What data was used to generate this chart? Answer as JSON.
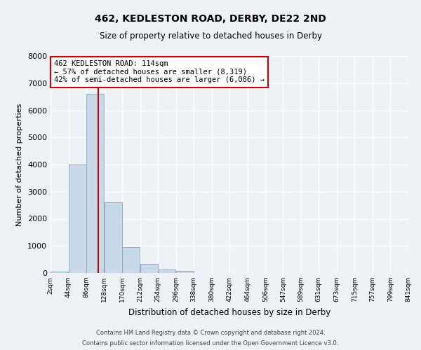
{
  "title": "462, KEDLESTON ROAD, DERBY, DE22 2ND",
  "subtitle": "Size of property relative to detached houses in Derby",
  "xlabel": "Distribution of detached houses by size in Derby",
  "ylabel": "Number of detached properties",
  "bar_color": "#c9d9ea",
  "bar_edge_color": "#8aaec8",
  "background_color": "#eef2f7",
  "grid_color": "#ffffff",
  "annotation_line_color": "#cc0000",
  "annotation_box_color": "#cc0000",
  "annotation_text_line1": "462 KEDLESTON ROAD: 114sqm",
  "annotation_text_line2": "← 57% of detached houses are smaller (8,319)",
  "annotation_text_line3": "42% of semi-detached houses are larger (6,086) →",
  "ylim": [
    0,
    8000
  ],
  "yticks": [
    0,
    1000,
    2000,
    3000,
    4000,
    5000,
    6000,
    7000,
    8000
  ],
  "bin_edges": [
    2,
    44,
    86,
    128,
    170,
    212,
    254,
    296,
    338,
    380,
    422,
    464,
    506,
    547,
    589,
    631,
    673,
    715,
    757,
    799,
    841
  ],
  "bin_labels": [
    "2sqm",
    "44sqm",
    "86sqm",
    "128sqm",
    "170sqm",
    "212sqm",
    "254sqm",
    "296sqm",
    "338sqm",
    "380sqm",
    "422sqm",
    "464sqm",
    "506sqm",
    "547sqm",
    "589sqm",
    "631sqm",
    "673sqm",
    "715sqm",
    "757sqm",
    "799sqm",
    "841sqm"
  ],
  "bar_heights": [
    55,
    4000,
    6600,
    2600,
    950,
    325,
    125,
    90,
    0,
    0,
    0,
    0,
    0,
    0,
    0,
    0,
    0,
    0,
    0,
    0
  ],
  "property_size": 114,
  "footer_text1": "Contains HM Land Registry data © Crown copyright and database right 2024.",
  "footer_text2": "Contains public sector information licensed under the Open Government Licence v3.0."
}
